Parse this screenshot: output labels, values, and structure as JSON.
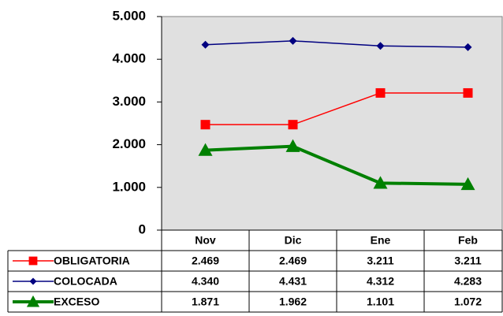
{
  "chart_data": {
    "type": "line",
    "categories": [
      "Nov",
      "Dic",
      "Ene",
      "Feb"
    ],
    "series": [
      {
        "name": "OBLIGATORIA",
        "color": "#ff0000",
        "marker": "square",
        "values": [
          2469,
          2469,
          3211,
          3211
        ],
        "value_labels": [
          "2.469",
          "2.469",
          "3.211",
          "3.211"
        ]
      },
      {
        "name": "COLOCADA",
        "color": "#000080",
        "marker": "diamond",
        "values": [
          4340,
          4431,
          4312,
          4283
        ],
        "value_labels": [
          "4.340",
          "4.431",
          "4.312",
          "4.283"
        ]
      },
      {
        "name": "EXCESO",
        "color": "#008000",
        "marker": "triangle",
        "values": [
          1871,
          1962,
          1101,
          1072
        ],
        "value_labels": [
          "1.871",
          "1.962",
          "1.101",
          "1.072"
        ]
      }
    ],
    "ylim": [
      0,
      5000
    ],
    "yticks": [
      0,
      {
        "value": 1000,
        "label": "1.000"
      },
      {
        "value": 2000,
        "label": "2.000"
      },
      {
        "value": 3000,
        "label": "3.000"
      },
      {
        "value": 4000,
        "label": "4.000"
      },
      {
        "value": 5000,
        "label": "5.000"
      }
    ],
    "grid": true,
    "data_table": true
  }
}
